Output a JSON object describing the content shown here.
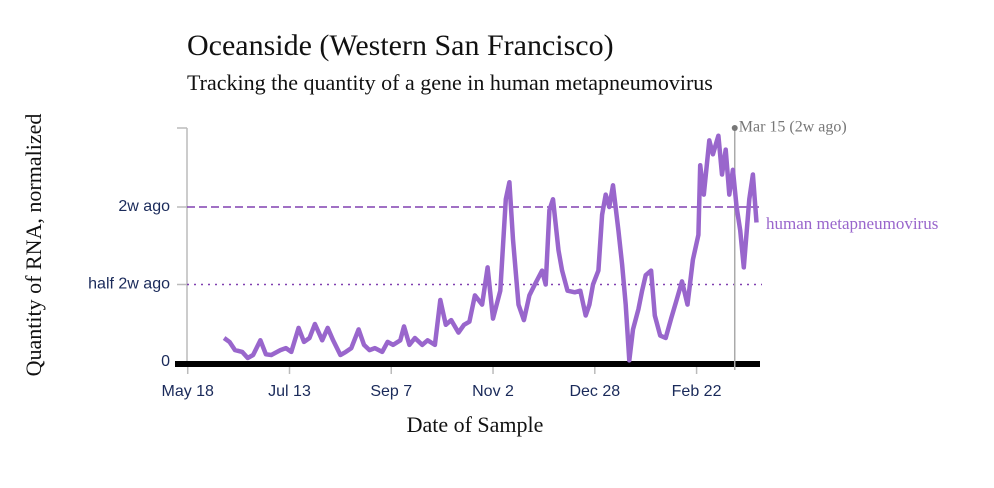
{
  "chart_data": {
    "type": "line",
    "title": "Oceanside (Western San Francisco)",
    "subtitle": "Tracking the quantity of a gene in human metapneumovirus",
    "x_label": "Date of Sample",
    "y_label": "Quantity of RNA, normalized",
    "x": [
      20,
      23,
      26,
      30,
      33,
      36,
      40,
      43,
      46,
      51,
      54,
      57,
      61,
      64,
      67,
      70,
      74,
      77,
      80,
      84,
      87,
      90,
      94,
      97,
      100,
      103,
      107,
      110,
      113,
      117,
      119,
      122,
      125,
      129,
      132,
      136,
      139,
      142,
      145,
      149,
      152,
      155,
      158,
      162,
      165,
      168,
      172,
      175,
      177,
      179,
      182,
      185,
      188,
      191,
      195,
      197,
      199,
      201,
      204,
      206,
      209,
      213,
      216,
      219,
      221,
      223,
      226,
      228,
      230,
      232,
      234,
      237,
      239,
      241,
      243,
      245,
      248,
      250,
      252,
      255,
      257,
      260,
      263,
      266,
      269,
      272,
      275,
      278,
      281,
      282,
      284,
      287,
      289,
      292,
      294,
      296,
      298,
      300,
      302,
      304,
      306,
      309,
      311,
      313
    ],
    "series": [
      {
        "name": "human metapneumovirus",
        "color": "#9966cc",
        "values": [
          0.155,
          0.13,
          0.077,
          0.065,
          0.026,
          0.045,
          0.14,
          0.05,
          0.045,
          0.077,
          0.09,
          0.065,
          0.22,
          0.13,
          0.155,
          0.245,
          0.14,
          0.22,
          0.14,
          0.045,
          0.065,
          0.09,
          0.21,
          0.11,
          0.077,
          0.09,
          0.065,
          0.13,
          0.11,
          0.14,
          0.23,
          0.11,
          0.155,
          0.11,
          0.14,
          0.11,
          0.4,
          0.24,
          0.27,
          0.19,
          0.24,
          0.26,
          0.43,
          0.37,
          0.61,
          0.28,
          0.46,
          1.05,
          1.16,
          0.79,
          0.37,
          0.27,
          0.43,
          0.5,
          0.59,
          0.5,
          0.98,
          1.05,
          0.72,
          0.59,
          0.46,
          0.45,
          0.46,
          0.3,
          0.37,
          0.5,
          0.59,
          0.95,
          1.08,
          1.0,
          1.14,
          0.85,
          0.63,
          0.37,
          0.01,
          0.21,
          0.34,
          0.46,
          0.56,
          0.59,
          0.3,
          0.17,
          0.155,
          0.28,
          0.4,
          0.52,
          0.37,
          0.66,
          0.82,
          1.27,
          1.08,
          1.43,
          1.34,
          1.46,
          1.21,
          1.37,
          1.08,
          1.24,
          1.0,
          0.85,
          0.61,
          1.05,
          1.21,
          0.9
        ]
      }
    ],
    "xlim": [
      -7,
      316
    ],
    "xticks": [
      {
        "value": 0,
        "label": "May 18"
      },
      {
        "value": 56,
        "label": "Jul 13"
      },
      {
        "value": 112,
        "label": "Sep 7"
      },
      {
        "value": 168,
        "label": "Nov 2"
      },
      {
        "value": 224,
        "label": "Dec 28"
      },
      {
        "value": 280,
        "label": "Feb 22"
      }
    ],
    "ylim": [
      0,
      1.5
    ],
    "yticks": [
      0,
      {
        "value": 0.5,
        "label": "half 2w ago"
      },
      {
        "value": 1,
        "label": "2w ago"
      }
    ],
    "annotation": {
      "x": 301,
      "label": "Mar 15 (2w ago)"
    }
  }
}
